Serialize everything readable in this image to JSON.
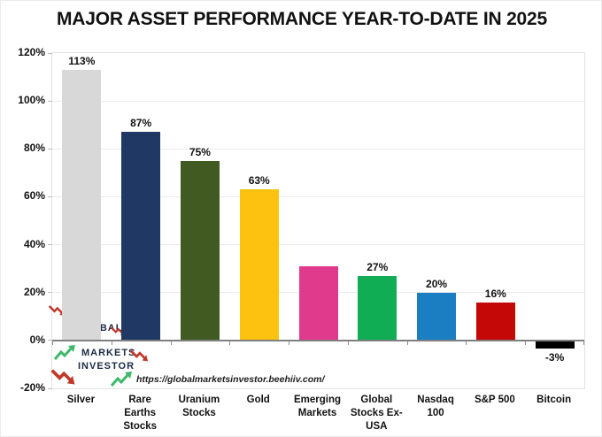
{
  "title": "MAJOR ASSET PERFORMANCE YEAR-TO-DATE IN 2025",
  "watermark": {
    "word1": "GLOBAL",
    "word2": "MARKETS",
    "word3": "INVESTOR",
    "url": "https://globalmarketsinvestor.beehiiv.com/",
    "icon_up": "uptrend-arrow-icon",
    "icon_down": "downtrend-arrow-icon",
    "up_color": "#3cb96a",
    "down_color": "#c0392b",
    "text_color": "#1b2a45"
  },
  "chart_data": {
    "type": "bar",
    "title": "MAJOR ASSET PERFORMANCE YEAR-TO-DATE IN 2025",
    "categories": [
      "Silver",
      "Rare Earths Stocks",
      "Uranium Stocks",
      "Gold",
      "Emerging Markets",
      "Global Stocks Ex-USA",
      "Nasdaq 100",
      "S&P 500",
      "Bitcoin"
    ],
    "values": [
      113,
      87,
      75,
      63,
      31,
      27,
      20,
      16,
      -3
    ],
    "value_labels": [
      "113%",
      "87%",
      "75%",
      "63%",
      "",
      "27%",
      "20%",
      "16%",
      "-3%"
    ],
    "bar_colors": [
      "#d8d8d8",
      "#1f3864",
      "#405a22",
      "#fdc20f",
      "#e03a8c",
      "#10ad55",
      "#1c7ec2",
      "#c40808",
      "#000000"
    ],
    "xlabel": "",
    "ylabel": "",
    "ylim": [
      -20,
      120
    ],
    "yticks": [
      120,
      100,
      80,
      60,
      40,
      20,
      0,
      -20
    ],
    "ytick_labels": [
      "120%",
      "100%",
      "80%",
      "60%",
      "40%",
      "20%",
      "0%",
      "-20%"
    ],
    "grid": true,
    "legend": false,
    "gridline_color": "#ebebeb",
    "axis_color": "#7f7f7f"
  }
}
